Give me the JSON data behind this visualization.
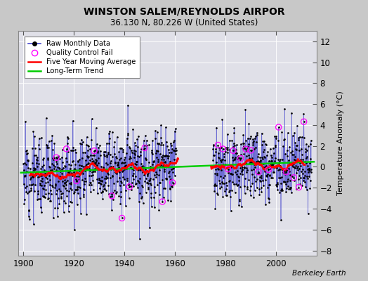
{
  "title": "WINSTON SALEM/REYNOLDS AIRPOR",
  "subtitle": "36.130 N, 80.226 W (United States)",
  "ylabel": "Temperature Anomaly (°C)",
  "credit": "Berkeley Earth",
  "year_start": 1900,
  "year_end": 2013,
  "ylim": [
    -8.5,
    13
  ],
  "yticks": [
    -8,
    -6,
    -4,
    -2,
    0,
    2,
    4,
    6,
    8,
    10,
    12
  ],
  "xticks": [
    1900,
    1920,
    1940,
    1960,
    1980,
    2000
  ],
  "bg_color": "#c8c8c8",
  "plot_bg_color": "#e0e0e8",
  "trend_slope": 0.009,
  "trend_intercept": -0.55,
  "noise_std": 1.8,
  "seed": 12
}
